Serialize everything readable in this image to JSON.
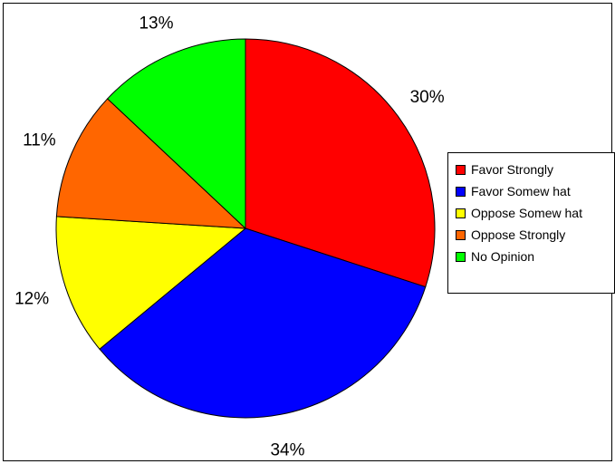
{
  "chart_data": {
    "type": "pie",
    "title": "",
    "start_angle_deg": 0,
    "direction": "clockwise",
    "slices": [
      {
        "label": "Favor Strongly",
        "value": 30,
        "display": "30%",
        "color": "#ff0000"
      },
      {
        "label": "Favor Somew hat",
        "value": 34,
        "display": "34%",
        "color": "#0000ff"
      },
      {
        "label": "Oppose Somew hat",
        "value": 12,
        "display": "12%",
        "color": "#ffff00"
      },
      {
        "label": "Oppose Strongly",
        "value": 11,
        "display": "11%",
        "color": "#ff6600"
      },
      {
        "label": "No Opinion",
        "value": 13,
        "display": "13%",
        "color": "#00ff00"
      }
    ],
    "legend_position": "right"
  }
}
